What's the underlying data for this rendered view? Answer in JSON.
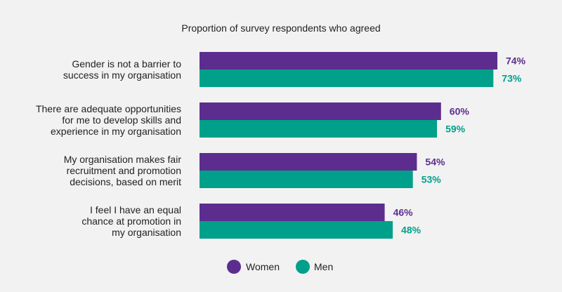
{
  "chart_data": {
    "type": "bar",
    "orientation": "horizontal",
    "title": "Proportion of survey respondents who agreed",
    "categories": [
      [
        "Gender is not a barrier to",
        "success in my organisation"
      ],
      [
        "There are adequate opportunities",
        "for me to develop skills and",
        "experience in my organisation"
      ],
      [
        "My organisation makes fair",
        "recruitment and promotion",
        "decisions, based on merit"
      ],
      [
        "I feel I have an equal",
        "chance at promotion in",
        "my organisation"
      ]
    ],
    "series": [
      {
        "name": "Women",
        "values": [
          74,
          60,
          54,
          46
        ],
        "labels": [
          "74%",
          "60%",
          "54%",
          "46%"
        ],
        "color": "#5c2d8f"
      },
      {
        "name": "Men",
        "values": [
          73,
          59,
          53,
          48
        ],
        "labels": [
          "73%",
          "59%",
          "53%",
          "48%"
        ],
        "color": "#00a08a"
      }
    ],
    "value_unit": "%",
    "xlim": [
      0,
      100
    ],
    "grid": false,
    "axes_visible": false,
    "legend_position": "bottom-center"
  }
}
